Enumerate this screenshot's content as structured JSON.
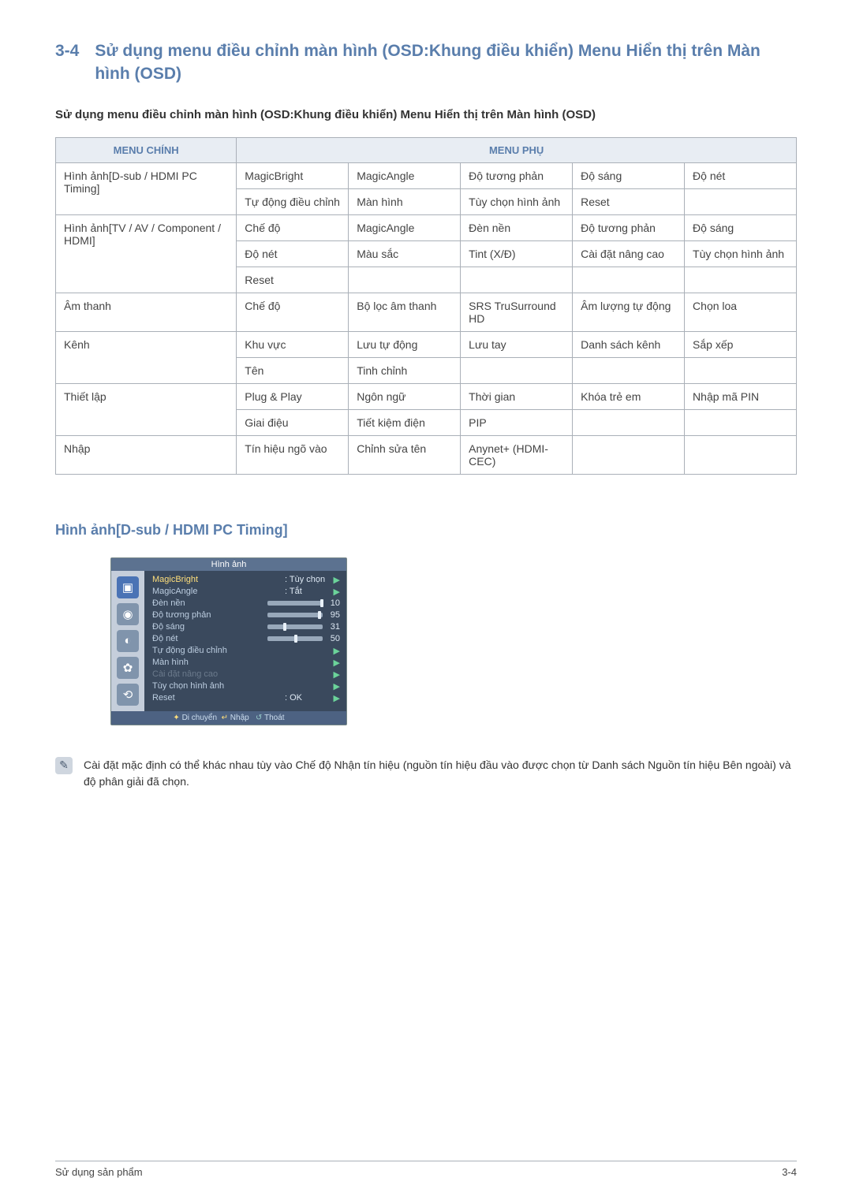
{
  "heading_number": "3-4",
  "heading_text": "Sử dụng menu điều chỉnh màn hình (OSD:Khung điều khiển) Menu Hiển thị trên Màn hình (OSD)",
  "section_title": "Sử dụng menu điều chỉnh màn hình (OSD:Khung điều khiển) Menu Hiển thị trên Màn hình (OSD)",
  "table_headers": {
    "main": "MENU CHÍNH",
    "sub": "MENU PHỤ"
  },
  "rows": [
    {
      "main": "Hình ảnh[D-sub / HDMI PC Timing]",
      "subs": [
        [
          "MagicBright",
          "MagicAngle",
          "Độ tương phản",
          "Độ sáng",
          "Độ nét"
        ],
        [
          "Tự động điều chỉnh",
          "Màn hình",
          "Tùy chọn hình ảnh",
          "Reset",
          ""
        ]
      ]
    },
    {
      "main": "Hình ảnh[TV / AV / Component / HDMI]",
      "subs": [
        [
          "Chế độ",
          "MagicAngle",
          "Đèn nền",
          "Độ tương phản",
          "Độ sáng"
        ],
        [
          "Độ nét",
          "Màu sắc",
          "Tint (X/Đ)",
          "Cài đặt nâng cao",
          "Tùy chọn hình ảnh"
        ],
        [
          "Reset",
          "",
          "",
          "",
          ""
        ]
      ]
    },
    {
      "main": "Âm thanh",
      "subs": [
        [
          "Chế độ",
          "Bộ lọc âm thanh",
          "SRS TruSurround HD",
          "Âm lượng tự động",
          "Chọn loa"
        ]
      ]
    },
    {
      "main": "Kênh",
      "subs": [
        [
          "Khu vực",
          "Lưu tự động",
          "Lưu tay",
          "Danh sách kênh",
          "Sắp xếp"
        ],
        [
          "Tên",
          "Tinh chỉnh",
          "",
          "",
          ""
        ]
      ]
    },
    {
      "main": "Thiết lập",
      "subs": [
        [
          "Plug & Play",
          "Ngôn ngữ",
          "Thời gian",
          "Khóa trẻ em",
          "Nhập mã PIN"
        ],
        [
          "Giai điệu",
          "Tiết kiệm điện",
          "PIP",
          "",
          ""
        ]
      ]
    },
    {
      "main": "Nhập",
      "subs": [
        [
          "Tín hiệu ngõ vào",
          "Chỉnh sửa tên",
          "Anynet+ (HDMI-CEC)",
          "",
          ""
        ]
      ]
    }
  ],
  "subheading": "Hình ảnh[D-sub / HDMI PC Timing]",
  "osd": {
    "title": "Hình ảnh",
    "items": [
      {
        "label": "MagicBright",
        "val": ": Tùy chọn",
        "arrow": true,
        "hl": true
      },
      {
        "label": "MagicAngle",
        "val": ": Tắt",
        "arrow": true
      },
      {
        "label": "Đèn nền",
        "slider": "s10",
        "num": "10"
      },
      {
        "label": "Độ tương phản",
        "slider": "s95",
        "num": "95"
      },
      {
        "label": "Độ sáng",
        "slider": "s31",
        "num": "31"
      },
      {
        "label": "Độ nét",
        "slider": "s50",
        "num": "50"
      },
      {
        "label": "Tự động điều chỉnh",
        "arrow": true
      },
      {
        "label": "Màn hình",
        "arrow": true
      },
      {
        "label": "Cài đặt nâng cao",
        "arrow": true,
        "dim": true
      },
      {
        "label": "Tùy chọn hình ảnh",
        "arrow": true
      },
      {
        "label": "Reset",
        "val": ": OK",
        "arrow": true
      }
    ],
    "bottom_move": "Di chuyển",
    "bottom_enter": "Nhập",
    "bottom_exit": "Thoát",
    "icons": [
      "▣",
      "◉",
      "◐",
      "✿",
      "⟲"
    ]
  },
  "note_text": "Cài đặt mặc định có thể khác nhau tùy vào Chế độ Nhận tín hiệu (nguồn tín hiệu đầu vào được chọn từ Danh sách Nguồn tín hiệu Bên ngoài) và độ phân giải đã chọn.",
  "footer_left": "Sử dụng sản phẩm",
  "footer_right": "3-4"
}
